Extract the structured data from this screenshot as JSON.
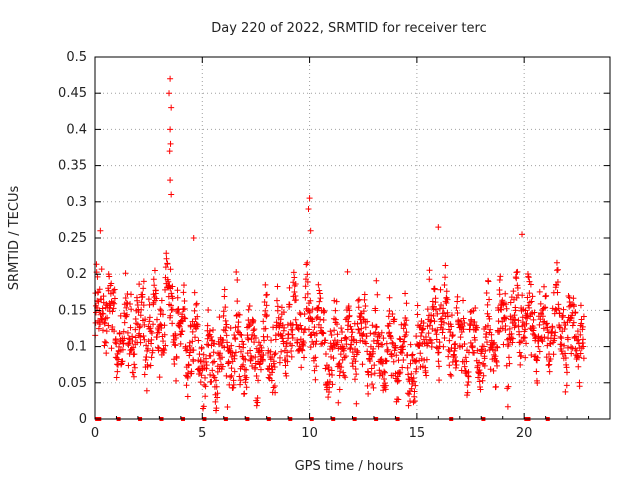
{
  "chart_data": {
    "type": "scatter",
    "title": "Day 220 of 2022, SRMTID for receiver terc",
    "xlabel": "GPS time / hours",
    "ylabel": "SRMTID / TECUs",
    "xlim": [
      0,
      24
    ],
    "ylim": [
      0,
      0.5
    ],
    "xticks": [
      0,
      5,
      10,
      15,
      20
    ],
    "xtick_labels": [
      "0",
      "5",
      "10",
      "15",
      "20"
    ],
    "yticks": [
      0,
      0.05,
      0.1,
      0.15,
      0.2,
      0.25,
      0.3,
      0.35,
      0.4,
      0.45,
      0.5
    ],
    "ytick_labels": [
      "0",
      "0.05",
      "0.1",
      "0.15",
      "0.2",
      "0.25",
      "0.3",
      "0.35",
      "0.4",
      "0.45",
      "0.5"
    ],
    "grid": true,
    "marker": "plus",
    "color": "#ff0000",
    "series": [
      {
        "name": "SRMTID",
        "baseline_profile": {
          "x": [
            0.0,
            0.5,
            1.0,
            1.5,
            2.0,
            2.5,
            3.0,
            3.5,
            4.0,
            4.5,
            5.0,
            5.5,
            6.0,
            6.5,
            7.0,
            7.5,
            8.0,
            8.5,
            9.0,
            9.5,
            10.0,
            10.5,
            11.0,
            11.5,
            12.0,
            12.5,
            13.0,
            13.5,
            14.0,
            14.5,
            15.0,
            15.5,
            16.0,
            16.5,
            17.0,
            17.5,
            18.0,
            18.5,
            19.0,
            19.5,
            20.0,
            20.5,
            21.0,
            21.5,
            22.0,
            22.5,
            22.8
          ],
          "y": [
            0.12,
            0.17,
            0.11,
            0.12,
            0.13,
            0.12,
            0.13,
            0.16,
            0.12,
            0.1,
            0.09,
            0.08,
            0.09,
            0.1,
            0.1,
            0.09,
            0.1,
            0.11,
            0.13,
            0.13,
            0.14,
            0.12,
            0.09,
            0.1,
            0.12,
            0.11,
            0.1,
            0.09,
            0.09,
            0.08,
            0.08,
            0.13,
            0.14,
            0.12,
            0.1,
            0.1,
            0.09,
            0.11,
            0.12,
            0.13,
            0.15,
            0.12,
            0.12,
            0.14,
            0.12,
            0.12,
            0.11
          ]
        },
        "spikes": [
          {
            "x": 3.5,
            "y": 0.47
          },
          {
            "x": 3.45,
            "y": 0.45
          },
          {
            "x": 3.55,
            "y": 0.43
          },
          {
            "x": 3.5,
            "y": 0.4
          },
          {
            "x": 3.52,
            "y": 0.38
          },
          {
            "x": 3.48,
            "y": 0.37
          },
          {
            "x": 3.5,
            "y": 0.33
          },
          {
            "x": 3.55,
            "y": 0.31
          },
          {
            "x": 10.0,
            "y": 0.305
          },
          {
            "x": 9.95,
            "y": 0.29
          },
          {
            "x": 10.05,
            "y": 0.26
          },
          {
            "x": 0.25,
            "y": 0.26
          },
          {
            "x": 16.0,
            "y": 0.265
          },
          {
            "x": 19.9,
            "y": 0.255
          },
          {
            "x": 4.6,
            "y": 0.25
          }
        ],
        "zero_markers_x": [
          0.1,
          0.2,
          1.1,
          2.1,
          3.1,
          4.1,
          5.1,
          6.1,
          7.1,
          8.1,
          9.1,
          10.1,
          11.1,
          12.1,
          13.1,
          14.1,
          16.6,
          18.1,
          20.1,
          20.2,
          21.1
        ]
      }
    ]
  }
}
